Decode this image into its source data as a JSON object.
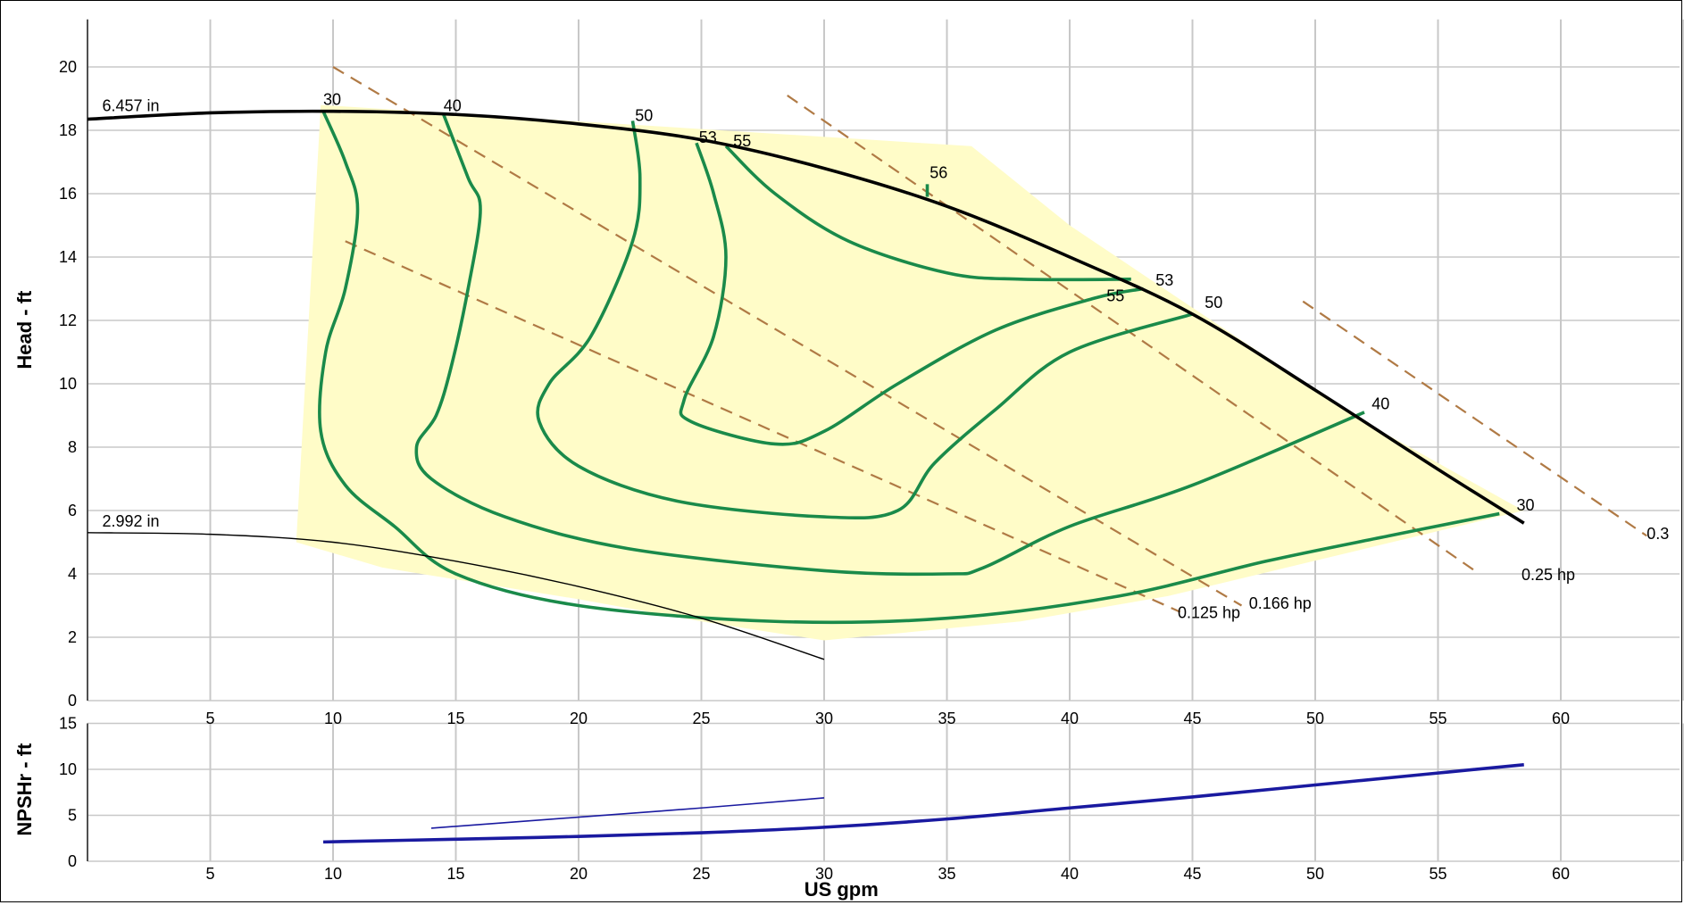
{
  "chart_data": [
    {
      "type": "line",
      "title": "",
      "xlabel": "",
      "ylabel": "Head - ft",
      "xlim": [
        0,
        65
      ],
      "ylim": [
        0,
        21
      ],
      "grid": true,
      "x_ticks": [
        "5",
        "10",
        "15",
        "20",
        "25",
        "30",
        "35",
        "40",
        "45",
        "50",
        "55",
        "60"
      ],
      "y_ticks": [
        "0",
        "2",
        "4",
        "6",
        "8",
        "10",
        "12",
        "14",
        "16",
        "18",
        "20"
      ],
      "impeller_curves": [
        {
          "name": "6.457 in",
          "points": [
            [
              0,
              18.35
            ],
            [
              5,
              18.55
            ],
            [
              10,
              18.6
            ],
            [
              15,
              18.5
            ],
            [
              20,
              18.2
            ],
            [
              25,
              17.7
            ],
            [
              30,
              16.8
            ],
            [
              35,
              15.6
            ],
            [
              40,
              14.0
            ],
            [
              45,
              12.2
            ],
            [
              50,
              9.8
            ],
            [
              55,
              7.3
            ],
            [
              58.5,
              5.6
            ]
          ]
        },
        {
          "name": "2.992 in",
          "points": [
            [
              0,
              5.3
            ],
            [
              5,
              5.25
            ],
            [
              10,
              5.0
            ],
            [
              15,
              4.4
            ],
            [
              20,
              3.6
            ],
            [
              25,
              2.6
            ],
            [
              30,
              1.3
            ]
          ]
        }
      ],
      "efficiency_contours": [
        {
          "name": "30",
          "points": [
            [
              9.6,
              18.6
            ],
            [
              10.5,
              17
            ],
            [
              11,
              15.5
            ],
            [
              10.5,
              13
            ],
            [
              9.7,
              11
            ],
            [
              9.5,
              8.5
            ],
            [
              10.5,
              6.8
            ],
            [
              12.5,
              5.5
            ],
            [
              15,
              4
            ],
            [
              20,
              3
            ],
            [
              28,
              2.5
            ],
            [
              35,
              2.6
            ],
            [
              42,
              3.3
            ],
            [
              48,
              4.4
            ],
            [
              53,
              5.2
            ],
            [
              57.5,
              5.9
            ]
          ]
        },
        {
          "name": "40",
          "points": [
            [
              14.5,
              18.5
            ],
            [
              15.5,
              16.5
            ],
            [
              16,
              15.5
            ],
            [
              15.5,
              13
            ],
            [
              14.8,
              10.5
            ],
            [
              14.2,
              9
            ],
            [
              13.4,
              8
            ],
            [
              14,
              7
            ],
            [
              17,
              5.8
            ],
            [
              22,
              4.8
            ],
            [
              30,
              4.1
            ],
            [
              35,
              4
            ],
            [
              36.5,
              4.2
            ],
            [
              40,
              5.5
            ],
            [
              45,
              6.8
            ],
            [
              52,
              9.1
            ]
          ]
        },
        {
          "name": "50",
          "points": [
            [
              22.2,
              18.3
            ],
            [
              22.5,
              16.5
            ],
            [
              22.2,
              14.5
            ],
            [
              20.5,
              11.5
            ],
            [
              18.8,
              10
            ],
            [
              18.4,
              8.8
            ],
            [
              20,
              7.4
            ],
            [
              24,
              6.3
            ],
            [
              30,
              5.8
            ],
            [
              33,
              6
            ],
            [
              34.5,
              7.5
            ],
            [
              37,
              9.2
            ],
            [
              40,
              11
            ],
            [
              45,
              12.2
            ]
          ]
        },
        {
          "name": "53",
          "points": [
            [
              24.8,
              17.6
            ],
            [
              25.5,
              16
            ],
            [
              26,
              14
            ],
            [
              25.5,
              11.5
            ],
            [
              24.3,
              9.5
            ],
            [
              24.6,
              8.8
            ],
            [
              28,
              8.1
            ],
            [
              30,
              8.5
            ],
            [
              33,
              10
            ],
            [
              37,
              11.7
            ],
            [
              41,
              12.7
            ],
            [
              43,
              13
            ]
          ]
        },
        {
          "name": "55",
          "points": [
            [
              26,
              17.5
            ],
            [
              28,
              16
            ],
            [
              31,
              14.5
            ],
            [
              35,
              13.5
            ],
            [
              38,
              13.3
            ],
            [
              42.5,
              13.3
            ]
          ]
        },
        {
          "name": "56",
          "points": [
            [
              34.2,
              16.3
            ],
            [
              34.2,
              15.9
            ]
          ]
        }
      ],
      "power_lines": [
        {
          "name": "0.125 hp",
          "points": [
            [
              10.5,
              14.5
            ],
            [
              44.5,
              2.8
            ]
          ]
        },
        {
          "name": "0.166 hp",
          "points": [
            [
              10,
              20.0
            ],
            [
              47,
              3.0
            ]
          ]
        },
        {
          "name": "0.25 hp",
          "points": [
            [
              28.5,
              19.1
            ],
            [
              56.5,
              4.1
            ]
          ]
        },
        {
          "name": "0.3",
          "points": [
            [
              49.5,
              12.6
            ],
            [
              63.5,
              5.2
            ]
          ]
        }
      ],
      "annotations": {
        "impeller_large": "6.457 in",
        "impeller_small": "2.992 in",
        "eff_top": [
          "30",
          "40",
          "50",
          "53",
          "55",
          "56"
        ],
        "eff_right": [
          "55",
          "53",
          "50",
          "40",
          "30"
        ],
        "hp": [
          "0.125 hp",
          "0.166 hp",
          "0.25 hp",
          "0.3"
        ]
      },
      "operating_region": [
        [
          9.5,
          18.8
        ],
        [
          36,
          17.5
        ],
        [
          40,
          15
        ],
        [
          45,
          12.4
        ],
        [
          52,
          8.8
        ],
        [
          58,
          6.2
        ],
        [
          58.5,
          6
        ],
        [
          44,
          3.3
        ],
        [
          38,
          2.5
        ],
        [
          30,
          1.9
        ],
        [
          25,
          2.5
        ],
        [
          20,
          3.2
        ],
        [
          12,
          4.2
        ],
        [
          8.5,
          5
        ]
      ]
    },
    {
      "type": "line",
      "xlabel": "US gpm",
      "ylabel": "NPSHr - ft",
      "xlim": [
        0,
        65
      ],
      "ylim": [
        0,
        15
      ],
      "grid": true,
      "x_ticks": [
        "5",
        "10",
        "15",
        "20",
        "25",
        "30",
        "35",
        "40",
        "45",
        "50",
        "55",
        "60"
      ],
      "y_ticks": [
        "0",
        "5",
        "10",
        "15"
      ],
      "series": [
        {
          "points": [
            [
              9.6,
              2.1
            ],
            [
              15,
              2.4
            ],
            [
              20,
              2.7
            ],
            [
              25,
              3.1
            ],
            [
              30,
              3.7
            ],
            [
              35,
              4.6
            ],
            [
              40,
              5.8
            ],
            [
              45,
              7.0
            ],
            [
              50,
              8.3
            ],
            [
              55,
              9.6
            ],
            [
              58.5,
              10.5
            ]
          ]
        },
        {
          "points": [
            [
              14,
              3.6
            ],
            [
              20,
              4.8
            ],
            [
              25,
              5.8
            ],
            [
              30,
              6.9
            ]
          ]
        }
      ]
    }
  ],
  "colors": {
    "grid": "#c8c8c8",
    "region": "#fffcc8",
    "efficiency": "#1a8a4a",
    "impeller": "#000000",
    "power": "#b07a45",
    "npsh": "#1a1aa0"
  }
}
